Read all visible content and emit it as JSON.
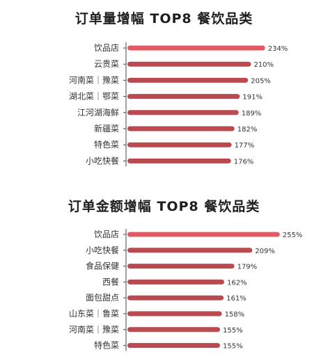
{
  "colors": {
    "bar": "#b84a50",
    "bar_highlight": "#e45a64",
    "text": "#333333",
    "highlight_text": "#e45a64",
    "axis": "#444444"
  },
  "chart_data": [
    {
      "type": "bar",
      "orientation": "horizontal",
      "title": "订单量增幅 TOP8 餐饮品类",
      "categories": [
        "饮品店",
        "云贵菜",
        "河南菜｜豫菜",
        "湖北菜｜鄂菜",
        "江河湖海鲜",
        "新疆菜",
        "特色菜",
        "小吃快餐"
      ],
      "values": [
        234,
        210,
        205,
        191,
        189,
        182,
        177,
        176
      ],
      "value_labels": [
        "234%",
        "210%",
        "205%",
        "191%",
        "189%",
        "182%",
        "177%",
        "176%"
      ],
      "unit": "%",
      "highlight_index": 0
    },
    {
      "type": "bar",
      "orientation": "horizontal",
      "title": "订单金额增幅 TOP8 餐饮品类",
      "categories": [
        "饮品店",
        "小吃快餐",
        "食品保健",
        "西餐",
        "面包甜点",
        "山东菜｜鲁菜",
        "河南菜｜豫菜",
        "特色菜"
      ],
      "values": [
        255,
        209,
        179,
        162,
        161,
        158,
        155,
        155
      ],
      "value_labels": [
        "255%",
        "209%",
        "179%",
        "162%",
        "161%",
        "158%",
        "155%",
        "155%"
      ],
      "unit": "%",
      "highlight_index": 0
    }
  ]
}
